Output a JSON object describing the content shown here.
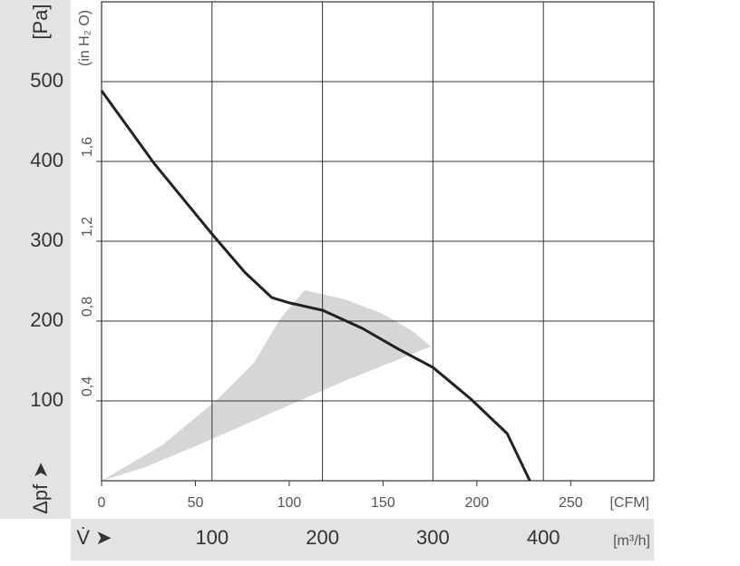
{
  "chart_data": {
    "type": "line",
    "y_label": "[Pa]",
    "y2_label": "(in H₂ O)",
    "y_symbol": "Δpf ➤",
    "x_symbol": "V̇ ➤",
    "x_label": "[m³/h]",
    "x2_label": "[CFM]",
    "xlim": [
      0,
      500
    ],
    "xticks": [
      100,
      200,
      300,
      400
    ],
    "x2lim": [
      0,
      294.3
    ],
    "x2ticks": [
      0,
      50,
      100,
      150,
      200,
      250
    ],
    "ylim": [
      0,
      600
    ],
    "yticks": [
      100,
      200,
      300,
      400,
      500
    ],
    "y2lim": [
      0,
      2.4
    ],
    "y2ticks": [
      {
        "value": 0.4,
        "label": "0,4"
      },
      {
        "value": 0.8,
        "label": "0,8"
      },
      {
        "value": 1.2,
        "label": "1,2"
      },
      {
        "value": 1.6,
        "label": "1,6"
      }
    ],
    "grid": true,
    "series": [
      {
        "color": "#222222",
        "x": [
          0,
          47.5,
          100,
          129.5,
          154.1,
          170.5,
          200,
          236.1,
          268.9,
          300,
          334.4,
          367.2,
          387.7
        ],
        "values": [
          488.6,
          397.7,
          309.1,
          261.4,
          229.5,
          222.7,
          213.6,
          190.9,
          164.8,
          142,
          102.3,
          59.1,
          0
        ]
      }
    ]
  }
}
